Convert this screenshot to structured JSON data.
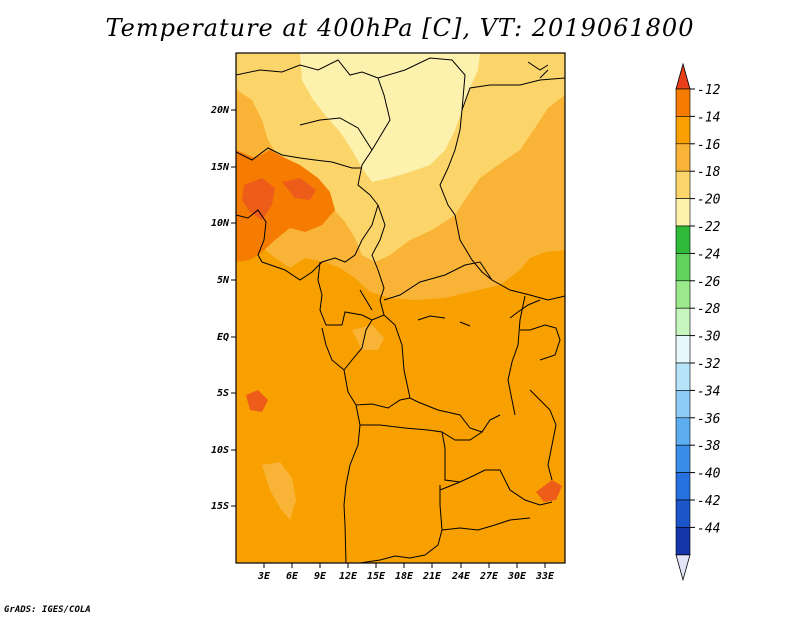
{
  "title": "Temperature at 400hPa [C], VT: 2019061800",
  "footer": "GrADS: IGES/COLA",
  "map": {
    "lat_labels": [
      "20N",
      "15N",
      "10N",
      "5N",
      "EQ",
      "5S",
      "10S",
      "15S"
    ],
    "lon_labels": [
      "3E",
      "6E",
      "9E",
      "12E",
      "15E",
      "18E",
      "21E",
      "24E",
      "27E",
      "30E",
      "33E"
    ],
    "colors": {
      "base": "#F7A000",
      "level_m14": "#F57C00",
      "level_m16": "#F9B437",
      "level_m18": "#FCD56A",
      "level_m20": "#FDF1AE",
      "hot": "#EE5C1A",
      "border": "#000000"
    }
  },
  "colorbar": {
    "labels": [
      "-12",
      "-14",
      "-16",
      "-18",
      "-20",
      "-22",
      "-24",
      "-26",
      "-28",
      "-30",
      "-32",
      "-34",
      "-36",
      "-38",
      "-40",
      "-42",
      "-44"
    ],
    "colors": [
      "#E8401A",
      "#F57C00",
      "#F7A000",
      "#F9B437",
      "#FCD56A",
      "#FDF1AE",
      "#2FBA3A",
      "#5FD35B",
      "#9AE98B",
      "#C6F5BE",
      "#E6F8FC",
      "#B6E3F9",
      "#8CCBF5",
      "#5DAEF0",
      "#3A8EEA",
      "#2471DF",
      "#1A55C9",
      "#1436A8"
    ],
    "top_arrow_color": "#E8401A",
    "bottom_arrow_color": "#E4E6F8"
  }
}
